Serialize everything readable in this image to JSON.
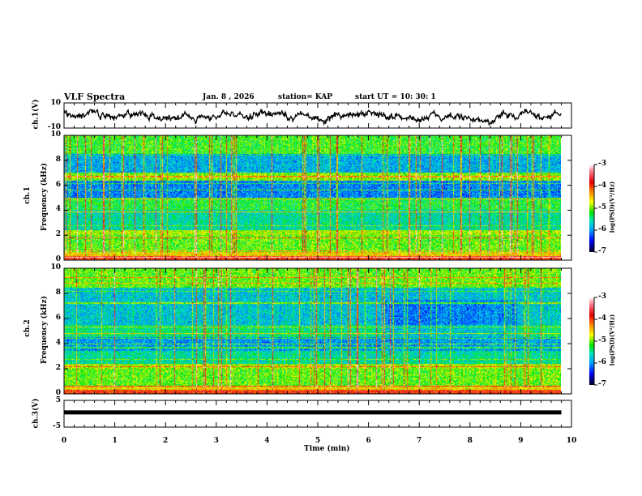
{
  "header": {
    "title": "VLF Spectra",
    "date": "Jan. 8 , 2026",
    "station": "station= KAP",
    "start_ut": "start  UT =   10: 30: 1"
  },
  "chart_data": {
    "type": "heatmap",
    "xlabel": "Time (min)",
    "xlim": [
      0,
      10
    ],
    "x_ticks": [
      "0",
      "1",
      "2",
      "3",
      "4",
      "5",
      "6",
      "7",
      "8",
      "9",
      "10"
    ],
    "data_end_min": 9.8,
    "panels": [
      {
        "name": "ch1_waveform",
        "type": "line",
        "ylabel": "ch.1(V)",
        "ylim": [
          -10,
          10
        ],
        "y_ticks": [
          "10",
          "-10"
        ]
      },
      {
        "name": "ch1_spectrogram",
        "type": "heatmap",
        "ylabel_top": "ch.1",
        "ylabel": "Frequency (kHz)",
        "ylim": [
          0,
          10
        ],
        "y_ticks": [
          "0",
          "2",
          "4",
          "6",
          "8",
          "10"
        ],
        "colorbar": {
          "label": "log(PSD)(V²/Hz)",
          "range": [
            -7,
            -3
          ],
          "ticks": [
            "-3",
            "-4",
            "-5",
            "-6",
            "-7"
          ]
        }
      },
      {
        "name": "ch2_spectrogram",
        "type": "heatmap",
        "ylabel_top": "ch.2",
        "ylabel": "Frequency (kHz)",
        "ylim": [
          0,
          10
        ],
        "y_ticks": [
          "0",
          "2",
          "4",
          "6",
          "8",
          "10"
        ],
        "colorbar": {
          "label": "log(PSD)(V²/Hz)",
          "range": [
            -7,
            -3
          ],
          "ticks": [
            "-3",
            "-4",
            "-5",
            "-6",
            "-7"
          ]
        }
      },
      {
        "name": "ch3_waveform",
        "type": "line",
        "ylabel": "ch.3(V)",
        "ylim": [
          -5,
          5
        ],
        "y_ticks": [
          "5",
          "-5"
        ],
        "constant_value": 0.5
      }
    ]
  }
}
